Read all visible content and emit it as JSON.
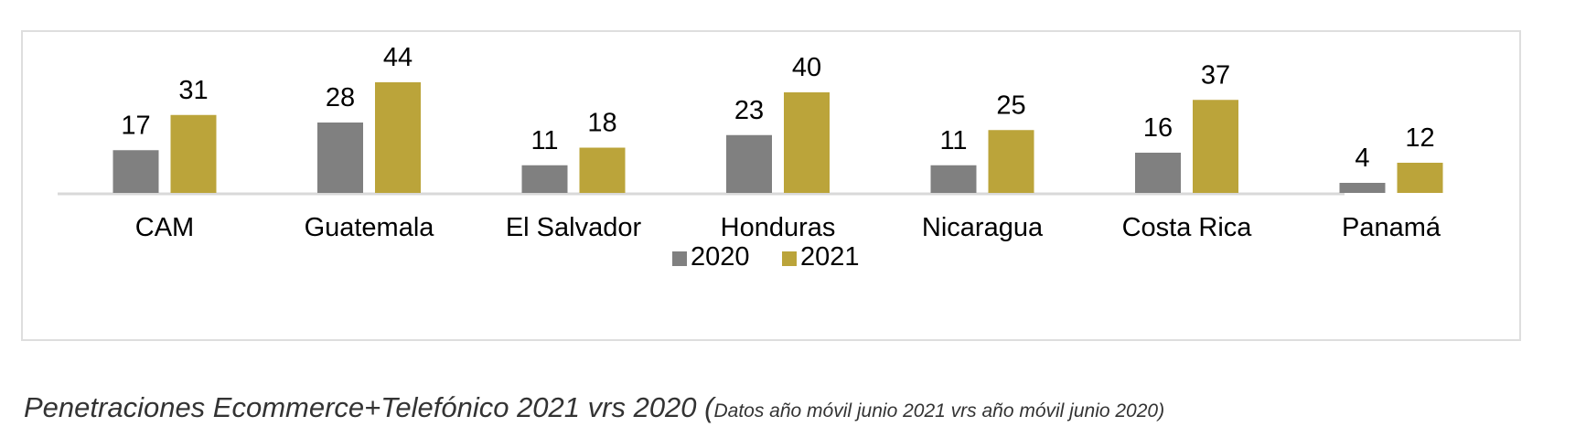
{
  "chart_data": {
    "type": "bar",
    "title": "",
    "xlabel": "",
    "ylabel": "",
    "categories": [
      "CAM",
      "Guatemala",
      "El Salvador",
      "Honduras",
      "Nicaragua",
      "Costa Rica",
      "Panamá"
    ],
    "series": [
      {
        "name": "2020",
        "color": "#808080",
        "values": [
          17,
          28,
          11,
          23,
          11,
          16,
          4
        ]
      },
      {
        "name": "2021",
        "color": "#bba43a",
        "values": [
          31,
          44,
          18,
          40,
          25,
          37,
          12
        ]
      }
    ],
    "ylim": [
      0,
      44
    ],
    "grid": false,
    "data_labels": true,
    "legend": {
      "position": "bottom",
      "entries": [
        "2020",
        "2021"
      ]
    }
  },
  "caption": {
    "main": "Penetraciones Ecommerce+Telefónico 2021 vrs 2020 ",
    "paren_open": "(",
    "detail": "Datos año móvil junio 2021 vrs año móvil junio 2020)"
  }
}
